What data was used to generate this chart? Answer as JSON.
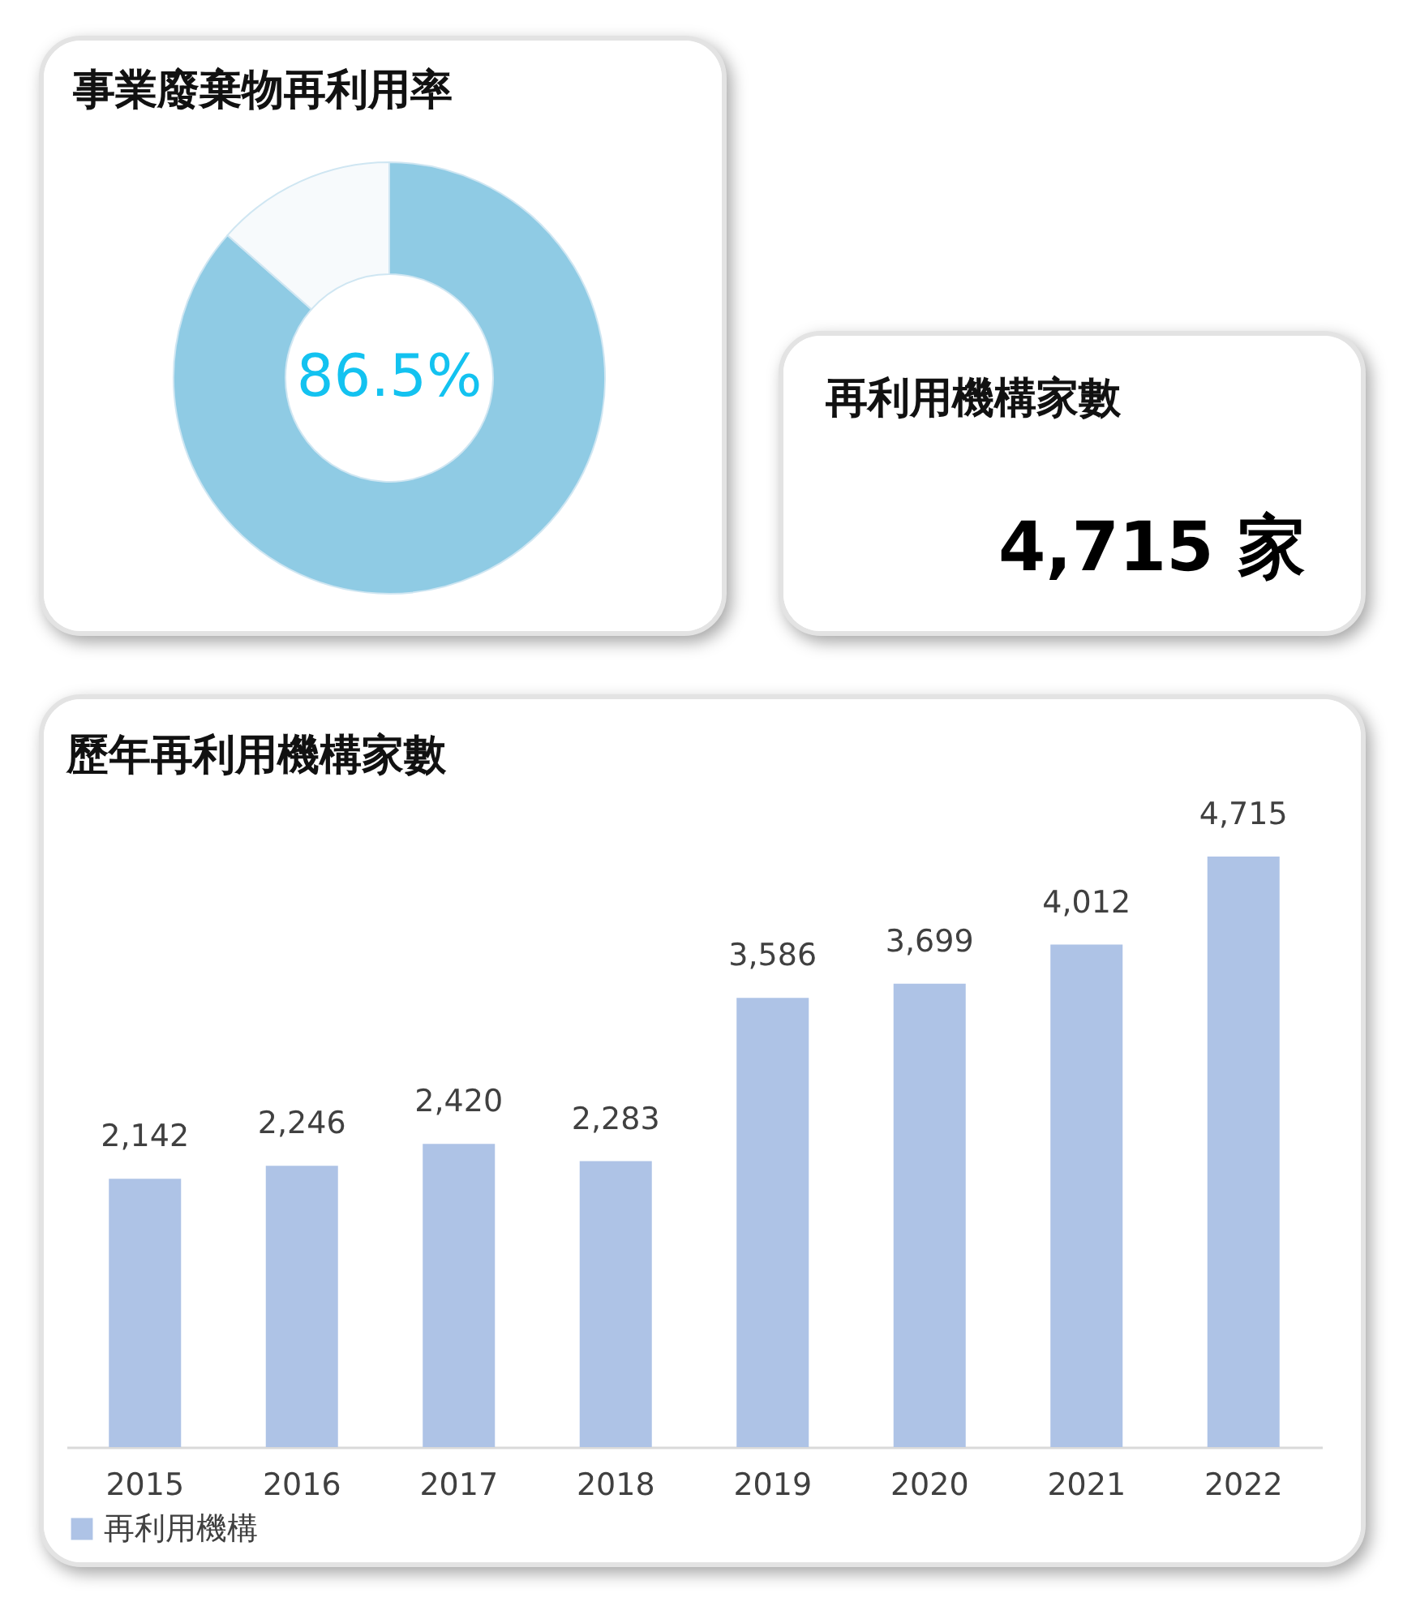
{
  "chart_data": [
    {
      "type": "donut",
      "title": "事業廢棄物再利用率",
      "categories": [
        null,
        null
      ],
      "values": [
        86.5,
        13.5
      ],
      "colors": [
        "#8fcbe4",
        "#f7fafc"
      ],
      "annotations": [
        "86.5%"
      ]
    },
    {
      "type": "other",
      "title": "再利用機構家數",
      "annotations": [
        "4,715 家"
      ]
    },
    {
      "type": "bar",
      "title": "歷年再利用機構家數",
      "categories": [
        "2015",
        "2016",
        "2017",
        "2018",
        "2019",
        "2020",
        "2021",
        "2022"
      ],
      "series": [
        {
          "name": "再利用機構",
          "color": "#aec3e6",
          "values": [
            2142,
            2246,
            2420,
            2283,
            3586,
            3699,
            4012,
            4715
          ],
          "value_labels": [
            "2,142",
            "2,246",
            "2,420",
            "2,283",
            "3,586",
            "3,699",
            "4,012",
            "4,715"
          ]
        }
      ],
      "legend": "bottom"
    }
  ]
}
